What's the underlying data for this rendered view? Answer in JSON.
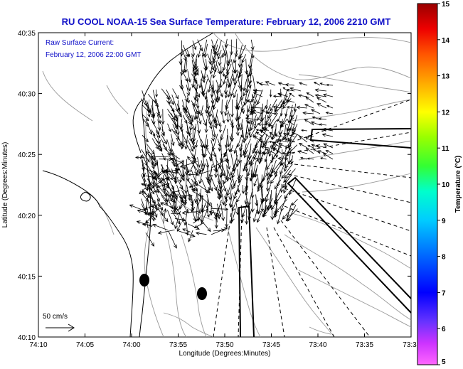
{
  "title": "RU COOL  NOAA-15  Sea Surface Temperature:  February 12, 2006 2210 GMT",
  "legend": {
    "line1": "Raw Surface Current:",
    "line2": "February 12, 2006 22:00 GMT"
  },
  "xaxis": {
    "label": "Longitude (Degrees:Minutes)",
    "ticks": [
      "74:10",
      "74:05",
      "74:00",
      "73:55",
      "73:50",
      "73:45",
      "73:40",
      "73:35",
      "73:3"
    ]
  },
  "yaxis": {
    "label": "Latitude (Degrees:Minutes)",
    "ticks": [
      "40:35",
      "40:30",
      "40:25",
      "40:20",
      "40:15",
      "40:10"
    ]
  },
  "colorbar": {
    "title": "Temperature (°C)",
    "min": 5,
    "max": 15,
    "ticks": [
      "15",
      "14",
      "13",
      "12",
      "11",
      "10",
      "9",
      "8",
      "7",
      "6",
      "5"
    ]
  },
  "scale": {
    "label": "50 cm/s"
  },
  "colors": {
    "title": "#1010c8",
    "vectors": "#000000",
    "contours": "#9a9a9a",
    "coast": "#000000"
  },
  "chart_data": {
    "type": "map",
    "lon_range_min": [
      -74.1667,
      -73.5
    ],
    "lat_range_min": [
      40.1667,
      40.5833
    ],
    "vector_field": "surface currents (arrows)",
    "markers": [
      {
        "name": "",
        "lon": "73:59",
        "lat": "40:14.5"
      },
      {
        "name": "",
        "lon": "73:52.5",
        "lat": "40:13.5"
      }
    ]
  }
}
